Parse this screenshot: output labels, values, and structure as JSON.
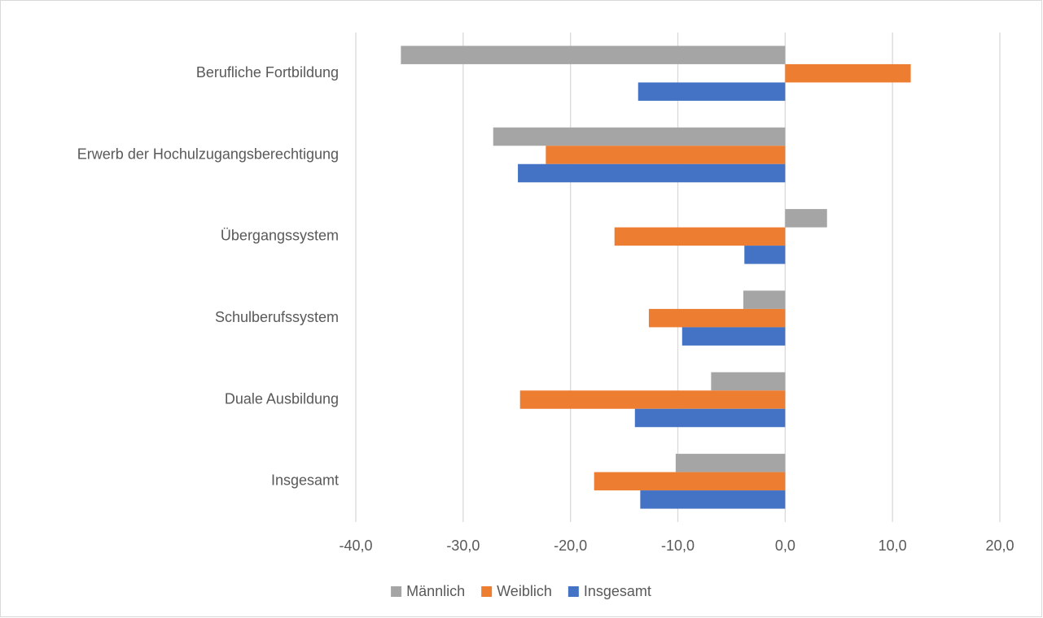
{
  "chart_data": {
    "type": "barh",
    "categories": [
      "Berufliche Fortbildung",
      "Erwerb der Hochulzugangsberechtigung",
      "Übergangssystem",
      "Schulberufssystem",
      "Duale Ausbildung",
      "Insgesamt"
    ],
    "series": [
      {
        "name": "Männlich",
        "color": "#a5a5a5",
        "values": [
          -35.8,
          -27.2,
          3.9,
          -3.9,
          -6.9,
          -10.2
        ]
      },
      {
        "name": "Weiblich",
        "color": "#ed7d31",
        "values": [
          11.7,
          -22.3,
          -15.9,
          -12.7,
          -24.7,
          -17.8
        ]
      },
      {
        "name": "Insgesamt",
        "color": "#4472c4",
        "values": [
          -13.7,
          -24.9,
          -3.8,
          -9.6,
          -14.0,
          -13.5
        ]
      }
    ],
    "xlim": [
      -40,
      20
    ],
    "xticks": [
      {
        "value": -40,
        "label": "-40,0"
      },
      {
        "value": -30,
        "label": "-30,0"
      },
      {
        "value": -20,
        "label": "-20,0"
      },
      {
        "value": -10,
        "label": "-10,0"
      },
      {
        "value": 0,
        "label": "0,0"
      },
      {
        "value": 10,
        "label": "10,0"
      },
      {
        "value": 20,
        "label": "20,0"
      }
    ],
    "grid": true,
    "legend": "bottom"
  }
}
